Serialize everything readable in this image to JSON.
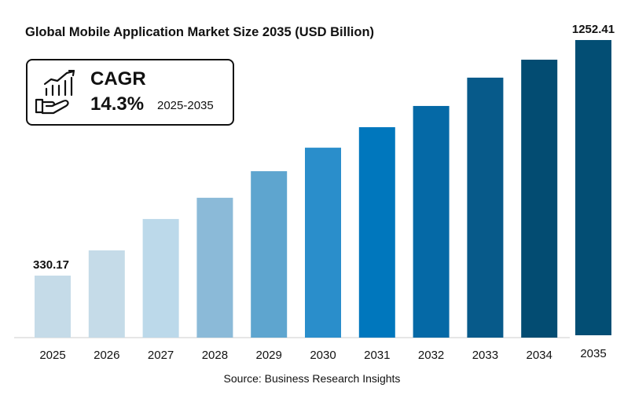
{
  "chart_data": {
    "type": "bar",
    "title": "Global Mobile Application Market Size 2035 (USD Billion)",
    "categories": [
      "2025",
      "2026",
      "2027",
      "2028",
      "2029",
      "2030",
      "2031",
      "2032",
      "2033",
      "2034",
      "2035"
    ],
    "values": [
      330.17,
      430,
      554,
      638,
      743,
      836,
      917,
      1001,
      1113,
      1184,
      1252.41
    ],
    "data_labels": {
      "2025": "330.17",
      "2035": "1252.41"
    },
    "colors": [
      "#c5dbe8",
      "#c5dbe8",
      "#bcd9ea",
      "#8bbad8",
      "#5ea5cf",
      "#2a8ecb",
      "#0077bd",
      "#0569a6",
      "#075a8a",
      "#034c72",
      "#034e74"
    ],
    "xlabel": "",
    "ylabel": "",
    "grid": false,
    "legend": "none"
  },
  "cagr": {
    "label": "CAGR",
    "value": "14.3%",
    "period": "2025-2035",
    "icon": "hand-growth-chart-icon"
  },
  "source": "Source:  Business Research Insights"
}
